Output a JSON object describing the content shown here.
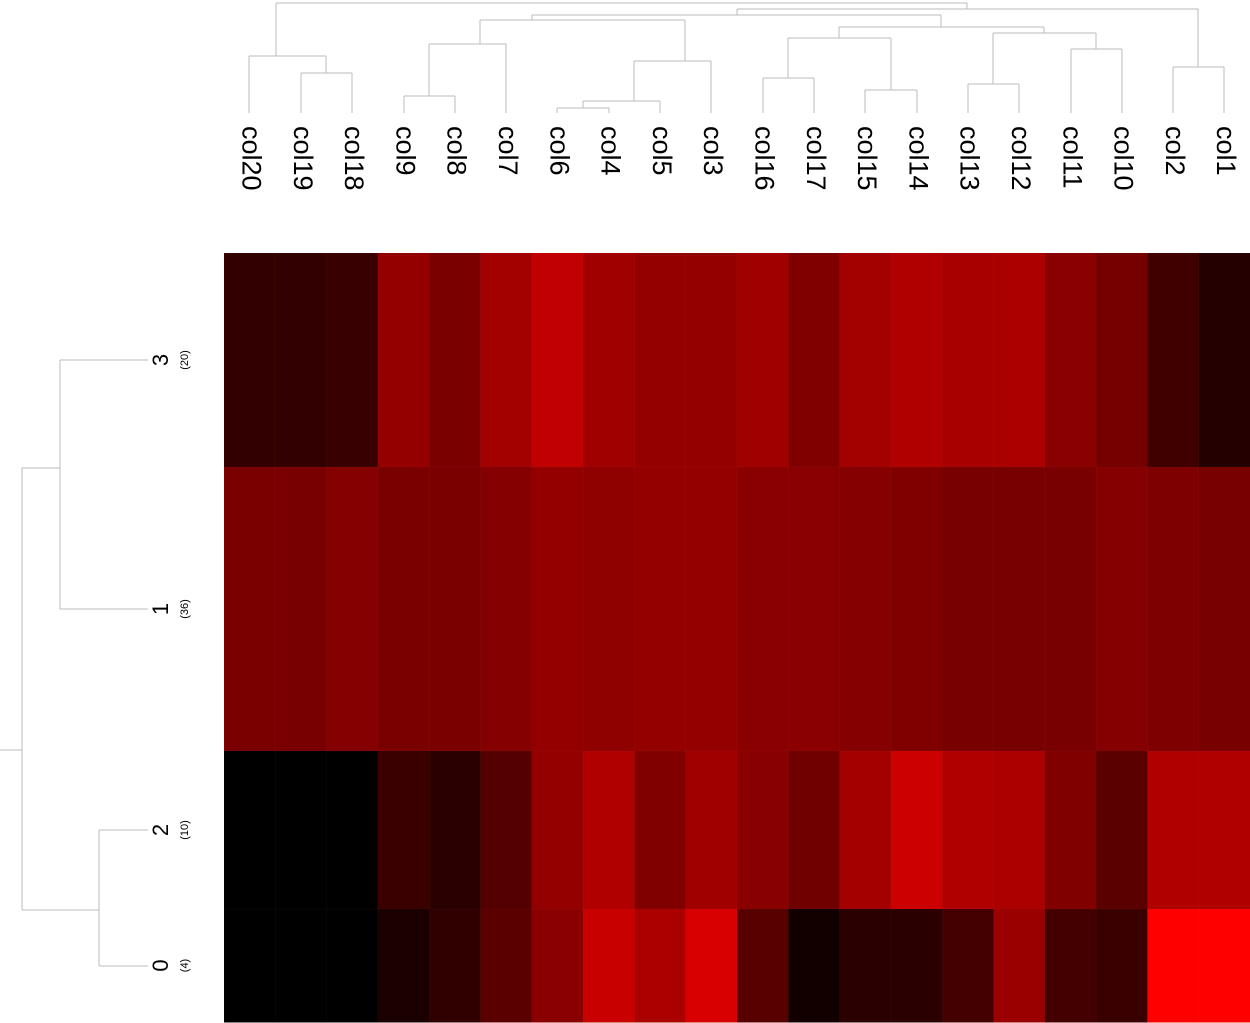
{
  "chart_data": {
    "type": "heatmap",
    "columns": [
      "col20",
      "col19",
      "col18",
      "col9",
      "col8",
      "col7",
      "col6",
      "col4",
      "col5",
      "col3",
      "col16",
      "col17",
      "col15",
      "col14",
      "col13",
      "col12",
      "col11",
      "col10",
      "col2",
      "col1"
    ],
    "rows": [
      {
        "label": "3",
        "count": "(20)"
      },
      {
        "label": "1",
        "count": "(36)"
      },
      {
        "label": "2",
        "count": "(10)"
      },
      {
        "label": "0",
        "count": "(4)"
      }
    ],
    "cell_colors": [
      [
        "#330000",
        "#330000",
        "#380000",
        "#940000",
        "#7a0000",
        "#a30000",
        "#c00000",
        "#a00000",
        "#940000",
        "#940000",
        "#a00000",
        "#800000",
        "#a30000",
        "#b00000",
        "#a80000",
        "#aa0000",
        "#8a0000",
        "#740000",
        "#400000",
        "#250000"
      ],
      [
        "#7a0000",
        "#780000",
        "#850000",
        "#7a0000",
        "#7a0000",
        "#850000",
        "#940000",
        "#8f0000",
        "#940000",
        "#940000",
        "#8a0000",
        "#8a0000",
        "#850000",
        "#800000",
        "#780000",
        "#780000",
        "#780000",
        "#850000",
        "#7f0000",
        "#780000"
      ],
      [
        "#000000",
        "#000000",
        "#000000",
        "#3a0000",
        "#2a0000",
        "#540000",
        "#940000",
        "#b00000",
        "#800000",
        "#a00000",
        "#880000",
        "#700000",
        "#a50000",
        "#cc0000",
        "#b00000",
        "#aa0000",
        "#800000",
        "#5a0000",
        "#b00000",
        "#b00000"
      ],
      [
        "#000000",
        "#000000",
        "#000000",
        "#1a0000",
        "#300000",
        "#5a0000",
        "#8a0000",
        "#c80000",
        "#aa0000",
        "#d80000",
        "#580000",
        "#120000",
        "#2a0000",
        "#2a0000",
        "#440000",
        "#9a0000",
        "#440000",
        "#3a0000",
        "#ff0000",
        "#ff0000"
      ]
    ]
  }
}
